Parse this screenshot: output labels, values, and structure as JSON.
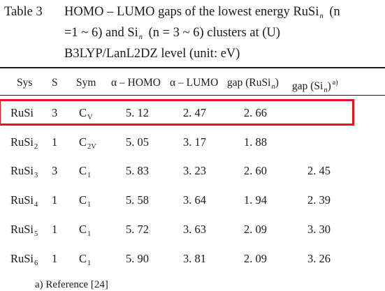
{
  "caption": {
    "label": "Table 3",
    "line1_a": "HOMO – LUMO gaps of the lowest energy RuSi",
    "line1_sub": "n",
    "line1_b": "(n",
    "line2": "=1 ~ 6) and Si",
    "line2_sub": "n",
    "line2_b": "(n = 3 ~ 6) clusters at (U)",
    "line3": "B3LYP/LanL2DZ level (unit: eV)"
  },
  "table": {
    "headers": {
      "sys": "Sys",
      "s": "S",
      "sym": "Sym",
      "homo": "α – HOMO",
      "lumo": "α – LUMO",
      "gap_rusi_a": "gap (RuSi",
      "gap_rusi_sub": "n",
      "gap_rusi_b": ")",
      "gap_si_a": "gap (Si",
      "gap_si_sub": "n",
      "gap_si_b": ")",
      "gap_si_sup": "a)"
    },
    "rows": [
      {
        "sys": "RuSi",
        "sys_sub": "",
        "s": "3",
        "sym": "C",
        "sym_sub": "V",
        "homo": "5. 12",
        "lumo": "2. 47",
        "gap_rusi": "2. 66",
        "gap_si": ""
      },
      {
        "sys": "RuSi",
        "sys_sub": "2",
        "s": "1",
        "sym": "C",
        "sym_sub": "2V",
        "homo": "5. 05",
        "lumo": "3. 17",
        "gap_rusi": "1. 88",
        "gap_si": ""
      },
      {
        "sys": "RuSi",
        "sys_sub": "3",
        "s": "3",
        "sym": "C",
        "sym_sub": "1",
        "homo": "5. 83",
        "lumo": "3. 23",
        "gap_rusi": "2. 60",
        "gap_si": "2. 45"
      },
      {
        "sys": "RuSi",
        "sys_sub": "4",
        "s": "1",
        "sym": "C",
        "sym_sub": "1",
        "homo": "5. 58",
        "lumo": "3. 64",
        "gap_rusi": "1. 94",
        "gap_si": "2. 39"
      },
      {
        "sys": "RuSi",
        "sys_sub": "5",
        "s": "1",
        "sym": "C",
        "sym_sub": "1",
        "homo": "5. 72",
        "lumo": "3. 63",
        "gap_rusi": "2. 09",
        "gap_si": "3. 30"
      },
      {
        "sys": "RuSi",
        "sys_sub": "6",
        "s": "1",
        "sym": "C",
        "sym_sub": "1",
        "homo": "5. 90",
        "lumo": "3. 81",
        "gap_rusi": "2. 09",
        "gap_si": "3. 26"
      }
    ]
  },
  "highlight_color": "#e4161b",
  "footnote": "a) Reference [24]"
}
